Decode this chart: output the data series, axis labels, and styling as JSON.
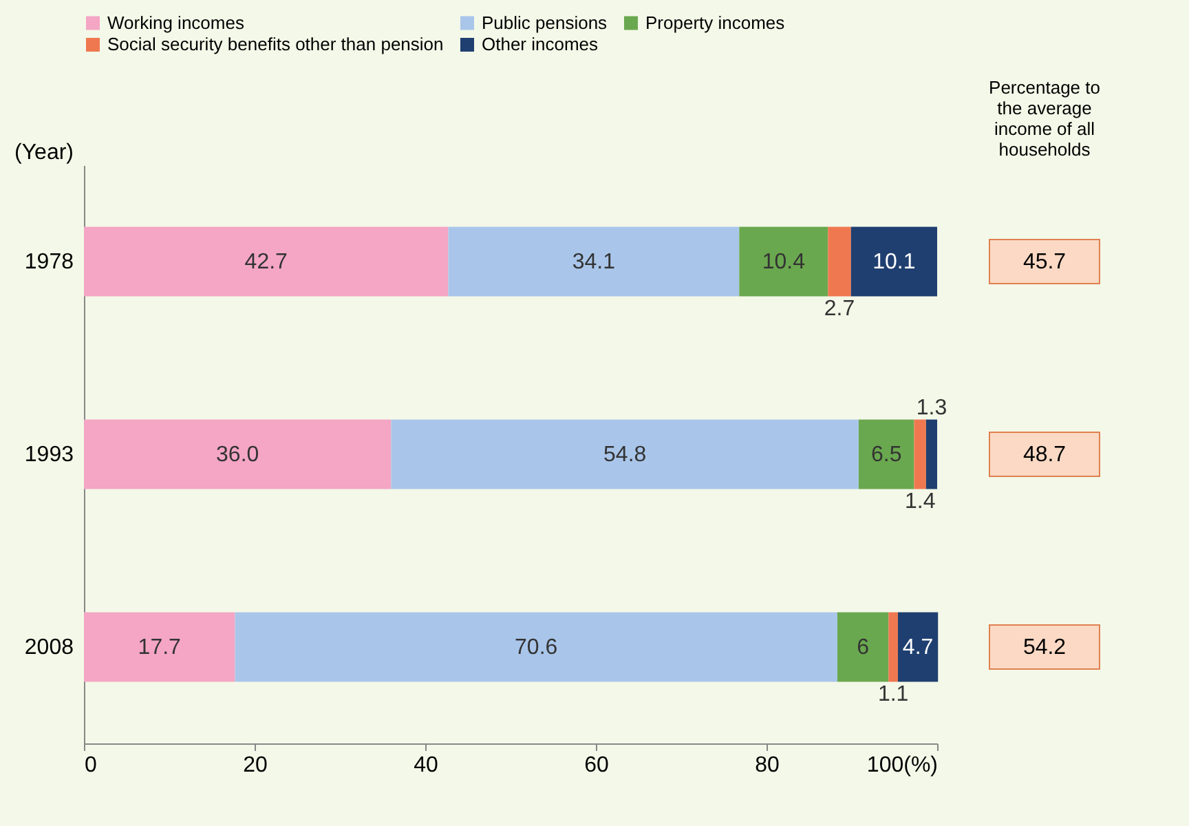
{
  "chart_data": {
    "type": "bar",
    "orientation": "horizontal",
    "stacked": true,
    "ylabel": "(Year)",
    "categories": [
      "1978",
      "1993",
      "2008"
    ],
    "series": [
      {
        "name": "Working incomes",
        "color": "#f4a6c4",
        "values": [
          42.7,
          36.0,
          17.7
        ],
        "value_labels": [
          "42.7",
          "36.0",
          "17.7"
        ]
      },
      {
        "name": "Public pensions",
        "color": "#a9c6ea",
        "values": [
          34.1,
          54.8,
          70.6
        ],
        "value_labels": [
          "34.1",
          "54.8",
          "70.6"
        ]
      },
      {
        "name": "Property incomes",
        "color": "#6aa84f",
        "values": [
          10.4,
          6.5,
          6
        ],
        "value_labels": [
          "10.4",
          "6.5",
          "6"
        ]
      },
      {
        "name": "Social security benefits other than pension",
        "color": "#f07850",
        "values": [
          2.7,
          1.4,
          1.1
        ],
        "value_labels": [
          "2.7",
          "1.4",
          "1.1"
        ]
      },
      {
        "name": "Other incomes",
        "color": "#1f3f70",
        "values": [
          10.1,
          1.3,
          4.7
        ],
        "value_labels": [
          "10.1",
          "1.3",
          "4.7"
        ]
      }
    ],
    "xlim": [
      0,
      100
    ],
    "xticks": [
      0,
      20,
      40,
      60,
      80,
      {
        "value": 100,
        "label": "100(%)"
      }
    ],
    "legend": "top",
    "annotations": [
      "Percentage to the average income of all households",
      "45.7",
      "48.7",
      "54.2"
    ]
  }
}
